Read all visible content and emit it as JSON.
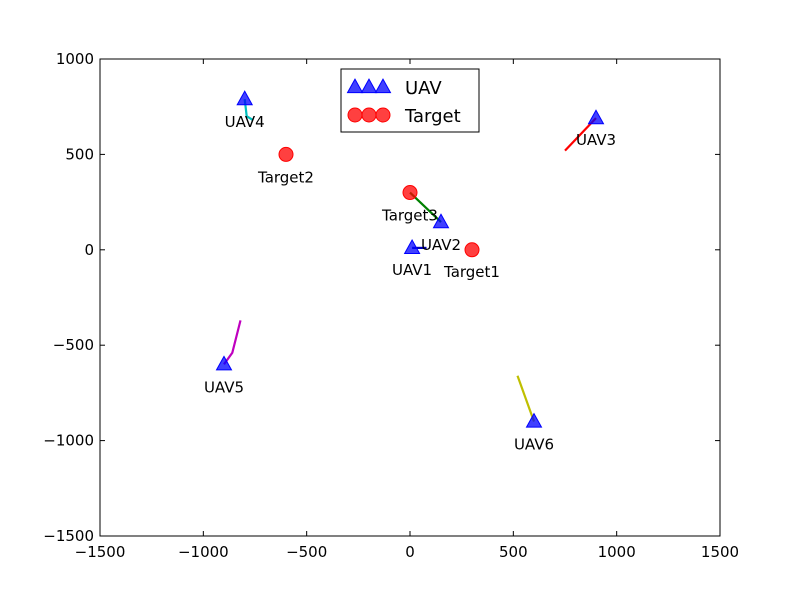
{
  "chart_data": {
    "type": "scatter",
    "xlim": [
      -1500,
      1500
    ],
    "ylim": [
      -1500,
      1000
    ],
    "xticks": [
      -1500,
      -1000,
      -500,
      0,
      500,
      1000,
      1500
    ],
    "yticks": [
      -1500,
      -1000,
      -500,
      0,
      500,
      1000
    ],
    "xtick_labels": [
      "−1500",
      "−1000",
      "−500",
      "0",
      "500",
      "1000",
      "1500"
    ],
    "ytick_labels": [
      "−1500",
      "−1000",
      "−500",
      "0",
      "500",
      "1000"
    ],
    "grid": false,
    "legend": {
      "placement": "top-center",
      "entries": [
        {
          "label": "UAV",
          "marker": "triangle",
          "color": "#0000ff"
        },
        {
          "label": "Target",
          "marker": "circle",
          "color": "#ff0000"
        }
      ]
    },
    "series": [
      {
        "name": "UAV",
        "marker": "triangle",
        "color": "#0000ff",
        "points": [
          {
            "label": "UAV1",
            "x": 10,
            "y": 10
          },
          {
            "label": "UAV2",
            "x": 150,
            "y": 145
          },
          {
            "label": "UAV3",
            "x": 900,
            "y": 690
          },
          {
            "label": "UAV4",
            "x": -800,
            "y": 790
          },
          {
            "label": "UAV5",
            "x": -900,
            "y": -600
          },
          {
            "label": "UAV6",
            "x": 600,
            "y": -900
          }
        ]
      },
      {
        "name": "Target",
        "marker": "circle",
        "color": "#ff0000",
        "points": [
          {
            "label": "Target1",
            "x": 300,
            "y": 0
          },
          {
            "label": "Target2",
            "x": -600,
            "y": 500
          },
          {
            "label": "Target3",
            "x": 0,
            "y": 300
          }
        ]
      }
    ],
    "paths": [
      {
        "uav": "UAV1",
        "color": "#0000bf",
        "points": [
          [
            10,
            10
          ],
          [
            80,
            10
          ]
        ]
      },
      {
        "uav": "UAV2",
        "color": "#008000",
        "points": [
          [
            150,
            145
          ],
          [
            0,
            300
          ]
        ]
      },
      {
        "uav": "UAV3",
        "color": "#ff0000",
        "points": [
          [
            900,
            690
          ],
          [
            750,
            520
          ]
        ]
      },
      {
        "uav": "UAV4",
        "color": "#00bfbf",
        "points": [
          [
            -800,
            790
          ],
          [
            -790,
            700
          ],
          [
            -760,
            680
          ]
        ]
      },
      {
        "uav": "UAV5",
        "color": "#bf00bf",
        "points": [
          [
            -900,
            -600
          ],
          [
            -860,
            -540
          ],
          [
            -820,
            -370
          ]
        ]
      },
      {
        "uav": "UAV6",
        "color": "#bfbf00",
        "points": [
          [
            600,
            -900
          ],
          [
            520,
            -660
          ]
        ]
      }
    ]
  }
}
